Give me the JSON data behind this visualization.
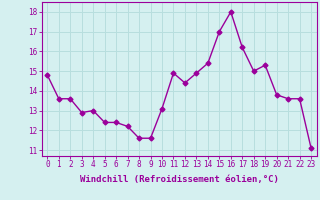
{
  "x": [
    0,
    1,
    2,
    3,
    4,
    5,
    6,
    7,
    8,
    9,
    10,
    11,
    12,
    13,
    14,
    15,
    16,
    17,
    18,
    19,
    20,
    21,
    22,
    23
  ],
  "y": [
    14.8,
    13.6,
    13.6,
    12.9,
    13.0,
    12.4,
    12.4,
    12.2,
    11.6,
    11.6,
    13.1,
    14.9,
    14.4,
    14.9,
    15.4,
    17.0,
    18.0,
    16.2,
    15.0,
    15.3,
    13.8,
    13.6,
    13.6,
    11.1
  ],
  "line_color": "#9b009b",
  "marker": "D",
  "markersize": 2.5,
  "linewidth": 1.0,
  "background_color": "#d5f0f0",
  "grid_color": "#b8dede",
  "xlabel": "Windchill (Refroidissement éolien,°C)",
  "xlabel_fontsize": 6.5,
  "tick_fontsize": 5.5,
  "ylim": [
    10.7,
    18.5
  ],
  "yticks": [
    11,
    12,
    13,
    14,
    15,
    16,
    17,
    18
  ],
  "xticks": [
    0,
    1,
    2,
    3,
    4,
    5,
    6,
    7,
    8,
    9,
    10,
    11,
    12,
    13,
    14,
    15,
    16,
    17,
    18,
    19,
    20,
    21,
    22,
    23
  ],
  "spine_color": "#9b009b"
}
